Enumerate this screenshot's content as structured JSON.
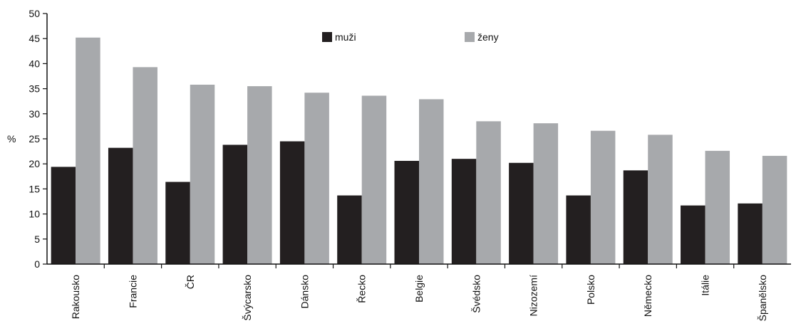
{
  "chart_data": {
    "type": "bar",
    "title": "",
    "xlabel": "",
    "ylabel": "%",
    "ylim": [
      0,
      50
    ],
    "yticks": [
      0,
      5,
      10,
      15,
      20,
      25,
      30,
      35,
      40,
      45,
      50
    ],
    "grid": false,
    "legend_position": "top-center",
    "categories": [
      "Rakousko",
      "Francie",
      "ČR",
      "Švýcarsko",
      "Dánsko",
      "Řecko",
      "Belgie",
      "Švédsko",
      "Nizozemí",
      "Polsko",
      "Německo",
      "Itálie",
      "Španělsko"
    ],
    "series": [
      {
        "name": "muži",
        "color": "#231f20",
        "values": [
          19.4,
          23.2,
          16.4,
          23.8,
          24.5,
          13.7,
          20.6,
          21.0,
          20.2,
          13.7,
          18.7,
          11.7,
          12.1
        ]
      },
      {
        "name": "ženy",
        "color": "#a7a9ac",
        "values": [
          45.2,
          39.3,
          35.8,
          35.5,
          34.2,
          33.6,
          32.9,
          28.5,
          28.1,
          26.6,
          25.8,
          22.6,
          21.6
        ]
      }
    ]
  }
}
